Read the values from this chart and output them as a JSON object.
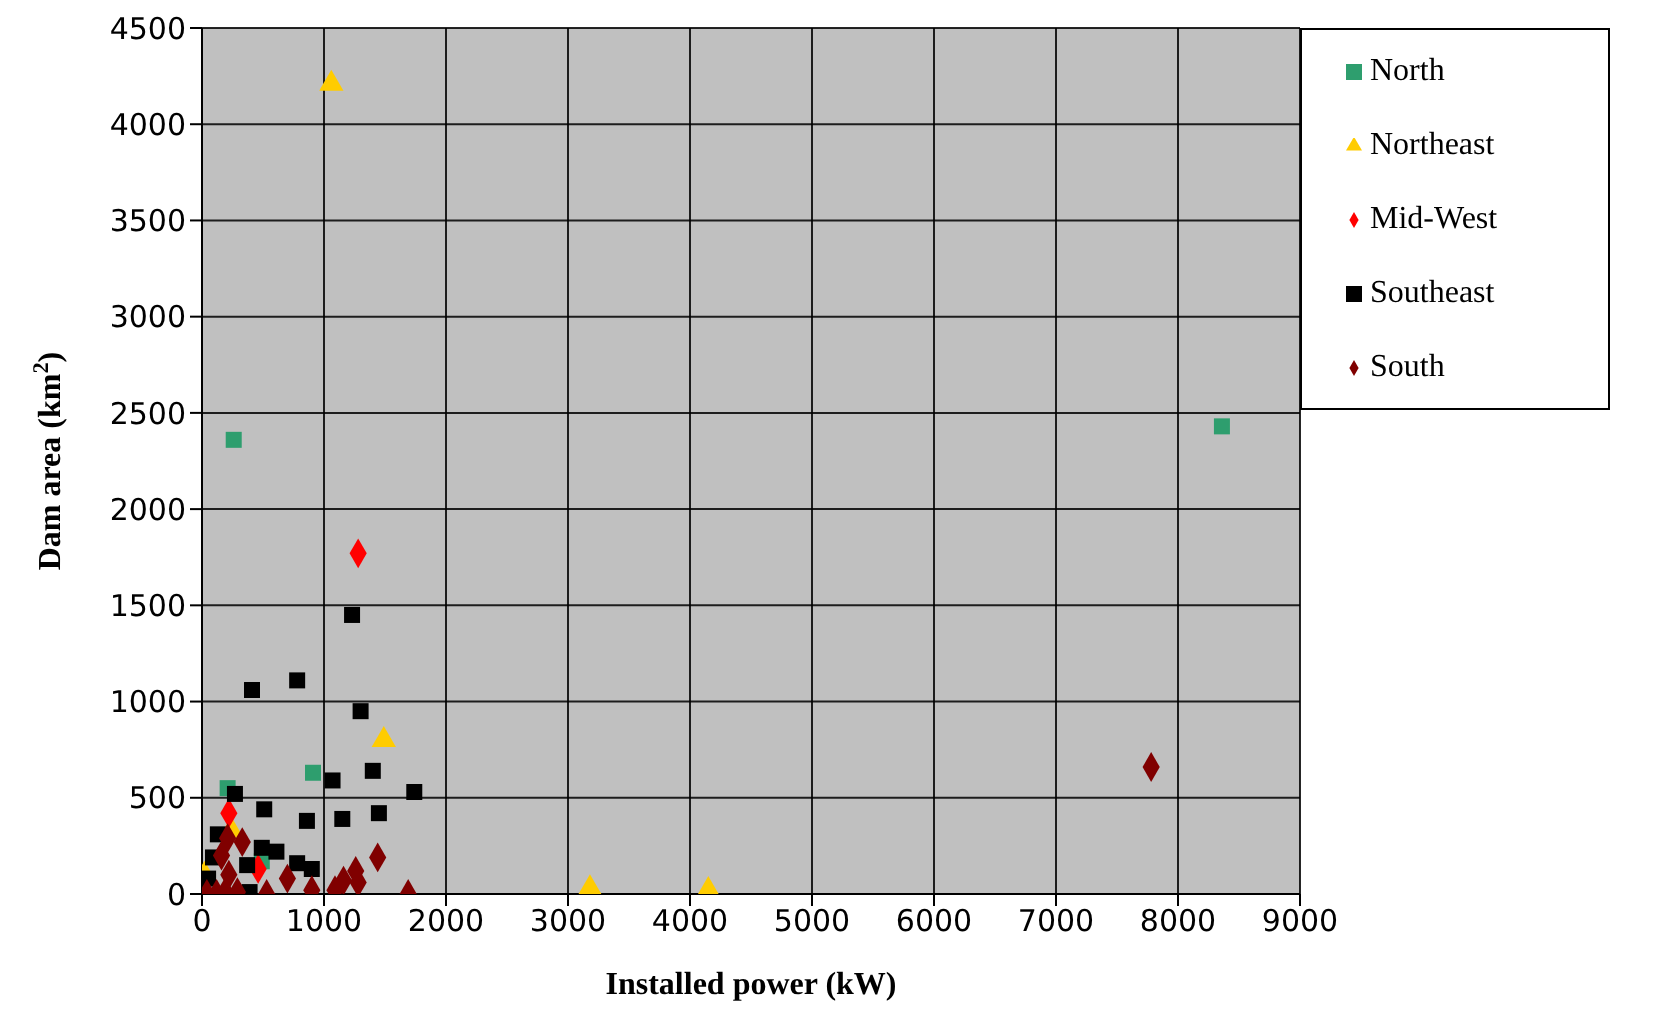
{
  "chart_data": {
    "type": "scatter",
    "xlabel": "Installed power (kW)",
    "ylabel": "Dam area (km$^{2}$)",
    "xlim": [
      0,
      9000
    ],
    "xticks": [
      0,
      1000,
      2000,
      3000,
      4000,
      5000,
      6000,
      7000,
      8000,
      9000
    ],
    "ylim": [
      0,
      4500
    ],
    "yticks": [
      0,
      500,
      1000,
      1500,
      2000,
      2500,
      3000,
      3500,
      4000,
      4500
    ],
    "grid": true,
    "legend": "top right",
    "series": [
      {
        "name": "North",
        "color": "#2e9e6e",
        "marker": "square",
        "x": [
          8360,
          260,
          910,
          210,
          490
        ],
        "values": [
          2430,
          2360,
          630,
          550,
          170
        ]
      },
      {
        "name": "Northeast",
        "color": "#ffcc00",
        "marker": "triangle",
        "x": [
          1060,
          1490,
          3180,
          4150,
          20,
          240
        ],
        "values": [
          4210,
          800,
          30,
          20,
          100,
          330
        ]
      },
      {
        "name": "Mid-West",
        "color": "#ff0000",
        "marker": "diamond",
        "x": [
          1280,
          220,
          460
        ],
        "values": [
          1770,
          420,
          130
        ]
      },
      {
        "name": "Southeast",
        "color": "#000000",
        "marker": "square",
        "x": [
          1230,
          410,
          780,
          1300,
          1400,
          1070,
          1740,
          270,
          510,
          860,
          1150,
          1450,
          130,
          490,
          610,
          90,
          780,
          900,
          370,
          390,
          50
        ],
        "values": [
          1450,
          1060,
          1110,
          950,
          640,
          590,
          530,
          520,
          440,
          380,
          390,
          420,
          310,
          240,
          220,
          190,
          160,
          130,
          150,
          10,
          80
        ]
      },
      {
        "name": "South",
        "color": "#800000",
        "marker": "diamond",
        "x": [
          7780,
          210,
          330,
          160,
          1440,
          1260,
          1280,
          1160,
          1090,
          700,
          900,
          530,
          1690,
          220,
          40,
          120,
          190,
          290
        ],
        "values": [
          660,
          290,
          270,
          200,
          190,
          120,
          60,
          70,
          20,
          80,
          20,
          0,
          0,
          100,
          0,
          0,
          10,
          10
        ]
      }
    ]
  }
}
